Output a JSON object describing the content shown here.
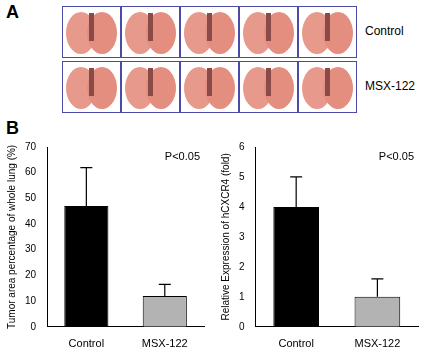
{
  "figure": {
    "panels": [
      {
        "label": "A",
        "row_labels": [
          "Control",
          "MSX-122"
        ]
      },
      {
        "label": "B"
      }
    ]
  },
  "chart_data": [
    {
      "type": "bar",
      "categories": [
        "Control",
        "MSX-122"
      ],
      "values": [
        47,
        12
      ],
      "errors": [
        15,
        4.5
      ],
      "colors": [
        "#000000",
        "#b3b3b3"
      ],
      "ylabel": "Tumor area percentage of whole lung (%)",
      "ylim": [
        0,
        70
      ],
      "yticks": [
        0,
        10,
        20,
        30,
        40,
        50,
        60,
        70
      ],
      "grid": false,
      "annotation": "P<0.05"
    },
    {
      "type": "bar",
      "categories": [
        "Control",
        "MSX-122"
      ],
      "values": [
        4,
        1.0
      ],
      "errors": [
        1.0,
        0.6
      ],
      "colors": [
        "#000000",
        "#b3b3b3"
      ],
      "ylabel": "Relative Expression of hCXCR4 (fold)",
      "ylim": [
        0,
        6
      ],
      "yticks": [
        0,
        1,
        2,
        3,
        4,
        5,
        6
      ],
      "grid": false,
      "annotation": "P<0.05"
    }
  ]
}
